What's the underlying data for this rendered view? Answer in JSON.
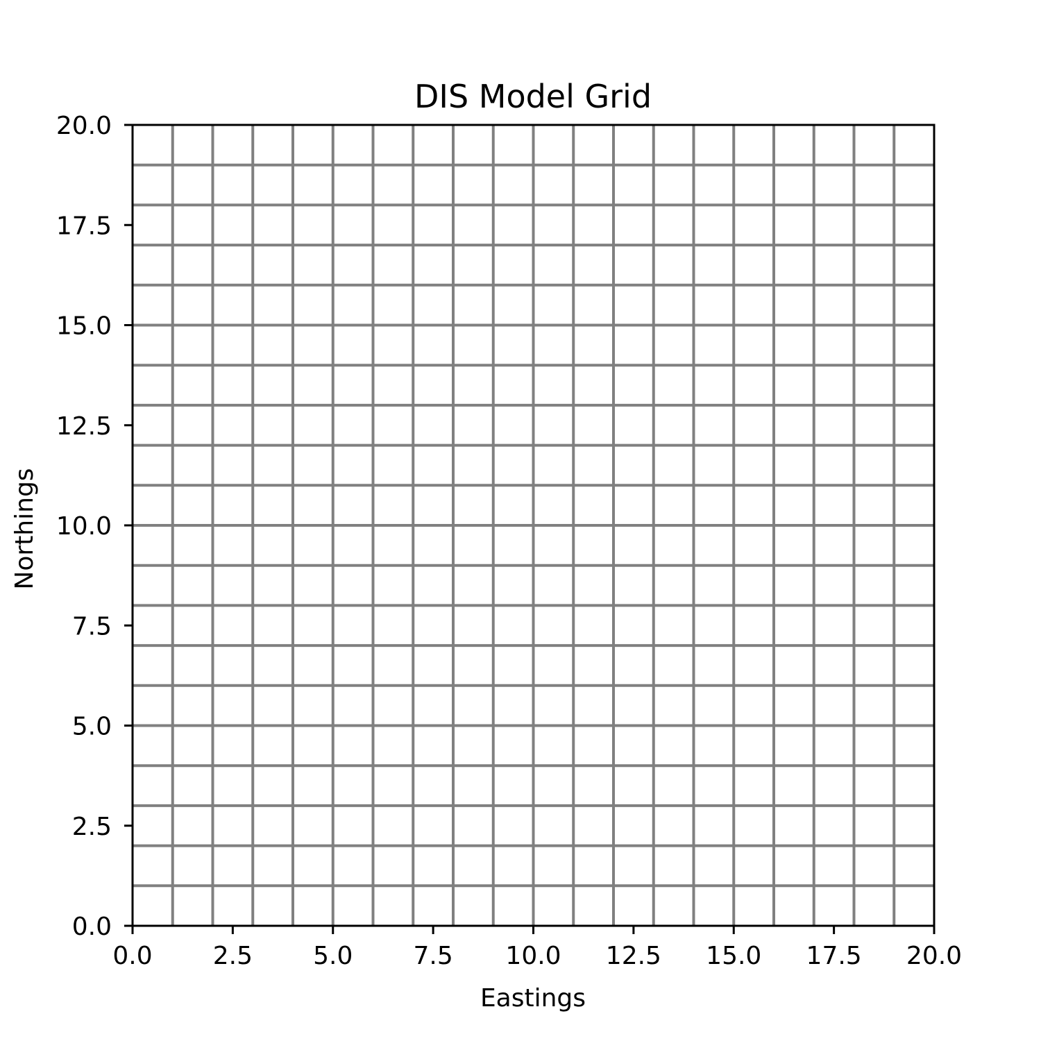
{
  "chart_data": {
    "type": "grid",
    "title": "DIS Model Grid",
    "xlabel": "Eastings",
    "ylabel": "Northings",
    "xlim": [
      0.0,
      20.0
    ],
    "ylim": [
      0.0,
      20.0
    ],
    "xticks": [
      0.0,
      2.5,
      5.0,
      7.5,
      10.0,
      12.5,
      15.0,
      17.5,
      20.0
    ],
    "yticks": [
      0.0,
      2.5,
      5.0,
      7.5,
      10.0,
      12.5,
      15.0,
      17.5,
      20.0
    ],
    "xtick_labels": [
      "0.0",
      "2.5",
      "5.0",
      "7.5",
      "10.0",
      "12.5",
      "15.0",
      "17.5",
      "20.0"
    ],
    "ytick_labels": [
      "0.0",
      "2.5",
      "5.0",
      "7.5",
      "10.0",
      "12.5",
      "15.0",
      "17.5",
      "20.0"
    ],
    "ncol": 20,
    "nrow": 20,
    "delr": 1.0,
    "delc": 1.0,
    "grid_line_color": "#808080",
    "axes_color": "#000000",
    "grid": true,
    "legend": false
  }
}
